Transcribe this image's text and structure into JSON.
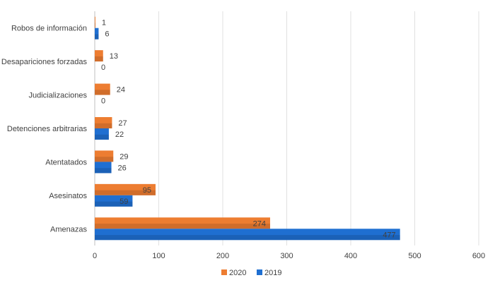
{
  "chart_data": {
    "type": "bar",
    "orientation": "horizontal",
    "categories": [
      "Robos de información",
      "Desapariciones forzadas",
      "Judicializaciones",
      "Detenciones arbitrarias",
      "Atentatados",
      "Asesinatos",
      "Amenazas"
    ],
    "series": [
      {
        "name": "2020",
        "color": "#ed7d31",
        "values": [
          1,
          13,
          24,
          27,
          29,
          95,
          274
        ],
        "labels": [
          "1",
          "13",
          "24",
          "27",
          "29",
          "95",
          "274"
        ]
      },
      {
        "name": "2019",
        "color": "#1f6fd1",
        "values": [
          6,
          0,
          0,
          22,
          26,
          59,
          477
        ],
        "labels": [
          "6",
          "0",
          "0",
          "22",
          "26",
          "59",
          "477"
        ]
      }
    ],
    "xlim": [
      0,
      600
    ],
    "xticks": [
      0,
      100,
      200,
      300,
      400,
      500,
      600
    ],
    "grid": true,
    "legend": "bottom"
  }
}
